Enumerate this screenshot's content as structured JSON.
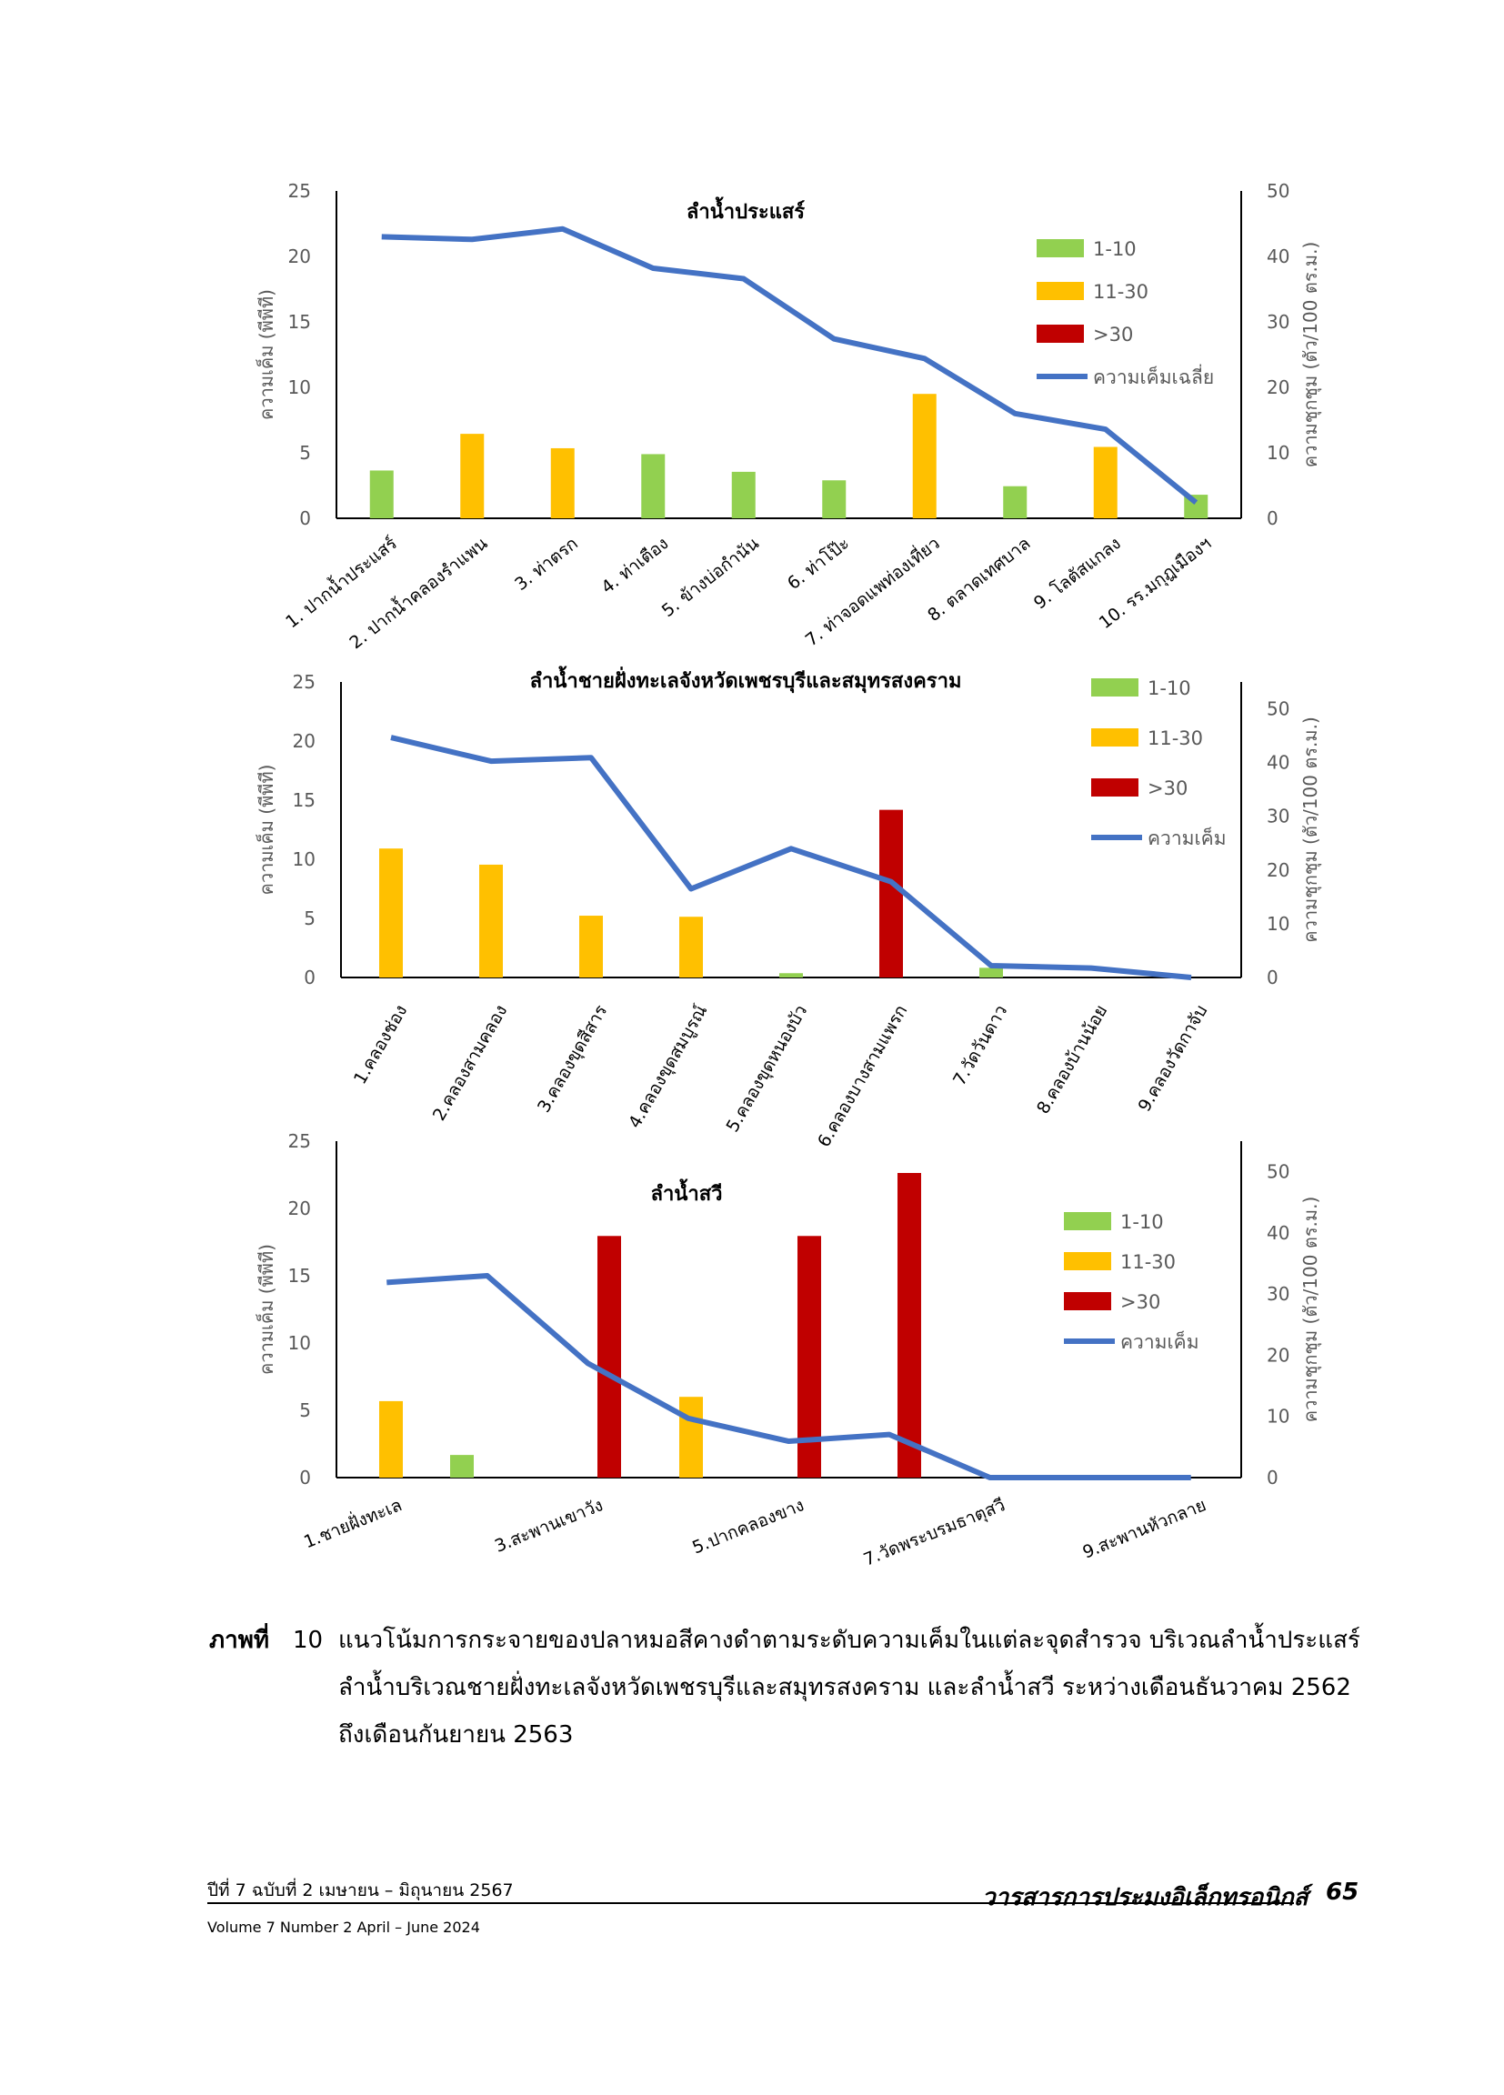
{
  "chart_data": [
    {
      "type": "bar",
      "title": "ลำน้ำประแสร์",
      "ylabel": "ความเค็ม (พีพีที)",
      "y2label": "ความชุกชุม (ตัว/100 ตร.ม.)",
      "ylim": [
        0,
        25
      ],
      "y2lim": [
        0,
        50
      ],
      "yticks": [
        "0",
        "5",
        "10",
        "15",
        "20",
        "25"
      ],
      "y2ticks": [
        "0",
        "10",
        "20",
        "30",
        "40",
        "50"
      ],
      "categories": [
        "1. ปากน้ำประแสร์",
        "2. ปากน้ำคลองรำแพน",
        "3. ท่าตรก",
        "4. ท่าเตือง",
        "5. ข้างบ่อกำนัน",
        "6. ท่าโป๊ะ",
        "7. ท่าจอดแพท่องเที่ยว",
        "8. ตลาดเทศบาล",
        "9. โลตัสแกลง",
        "10. รร.มกุฎเมืองฯ"
      ],
      "legend": [
        {
          "label": "1-10",
          "color": "#92d050"
        },
        {
          "label": "11-30",
          "color": "#ffc000"
        },
        {
          "label": ">30",
          "color": "#c00000"
        },
        {
          "label": "ความเค็มเฉลี่ย",
          "color": "#4472c4"
        }
      ],
      "bars": [
        {
          "value": 7.3,
          "class": "1-10"
        },
        {
          "value": 12.9,
          "class": "11-30"
        },
        {
          "value": 10.7,
          "class": "11-30"
        },
        {
          "value": 9.8,
          "class": "1-10"
        },
        {
          "value": 7.1,
          "class": "1-10"
        },
        {
          "value": 5.8,
          "class": "1-10"
        },
        {
          "value": 19.0,
          "class": "11-30"
        },
        {
          "value": 4.9,
          "class": "1-10"
        },
        {
          "value": 10.9,
          "class": "11-30"
        },
        {
          "value": 3.6,
          "class": "1-10"
        }
      ],
      "line_series": {
        "name": "ความเค็มเฉลี่ย",
        "values": [
          21.5,
          21.3,
          22.1,
          19.1,
          18.3,
          13.7,
          12.2,
          8.0,
          6.8,
          1.2
        ]
      }
    },
    {
      "type": "bar",
      "title": "ลำน้ำชายฝั่งทะเลจังหวัดเพชรบุรีและสมุทรสงคราม",
      "ylabel": "ความเค็ม (พีพีที)",
      "y2label": "ความชุกชุม (ตัว/100 ตร.ม.)",
      "ylim": [
        0,
        25
      ],
      "y2lim": [
        0,
        55
      ],
      "yticks": [
        "0",
        "5",
        "10",
        "15",
        "20",
        "25"
      ],
      "y2ticks": [
        "0",
        "10",
        "20",
        "30",
        "40",
        "50"
      ],
      "categories": [
        "1.คลองช่อง",
        "2.คลองสามคลอง",
        "3.คลองขุดสีสาร",
        "4.คลองขุดสมบูรณ์",
        "5.คลองขุดหนองบัว",
        "6.คลองบางสามแพรก",
        "7.วัดวันดาว",
        "8.คลองบ้านน้อย",
        "9.คลองวัดกาจับ"
      ],
      "legend": [
        {
          "label": "1-10",
          "color": "#92d050"
        },
        {
          "label": "11-30",
          "color": "#ffc000"
        },
        {
          "label": ">30",
          "color": "#c00000"
        },
        {
          "label": "ความเค็ม",
          "color": "#4472c4"
        }
      ],
      "bars": [
        {
          "value": 24,
          "class": "11-30"
        },
        {
          "value": 21,
          "class": "11-30"
        },
        {
          "value": 11.5,
          "class": "11-30"
        },
        {
          "value": 11.3,
          "class": "11-30"
        },
        {
          "value": 0.8,
          "class": "1-10"
        },
        {
          "value": 31.2,
          "class": ">30"
        },
        {
          "value": 1.8,
          "class": "1-10"
        },
        {
          "value": 0,
          "class": "1-10"
        },
        {
          "value": 0,
          "class": "1-10"
        }
      ],
      "line_series": {
        "name": "ความเค็ม",
        "values": [
          20.3,
          18.3,
          18.6,
          7.5,
          10.9,
          8.1,
          1.0,
          0.8,
          0
        ]
      }
    },
    {
      "type": "bar",
      "title": "ลำน้ำสวี",
      "ylabel": "ความเค็ม (พีพีที)",
      "y2label": "ความชุกชุม (ตัว/100 ตร.ม.)",
      "ylim": [
        0,
        25
      ],
      "y2lim": [
        0,
        55
      ],
      "yticks": [
        "0",
        "5",
        "10",
        "15",
        "20",
        "25"
      ],
      "y2ticks": [
        "0",
        "10",
        "20",
        "30",
        "40",
        "50"
      ],
      "categories": [
        "1.ชายฝั่งทะเล",
        "2",
        "3.สะพานเขาวัง",
        "4",
        "5.ปากคลองขาง",
        "6",
        "7.วัดพระบรมธาตุสวี",
        "8",
        "9.สะพานหัวกลาย"
      ],
      "category_labels_shown": [
        "1.ชายฝั่งทะเล",
        "",
        "3.สะพานเขาวัง",
        "",
        "5.ปากคลองขาง",
        "",
        "7.วัดพระบรมธาตุสวี",
        "",
        "9.สะพานหัวกลาย"
      ],
      "legend": [
        {
          "label": "1-10",
          "color": "#92d050"
        },
        {
          "label": "11-30",
          "color": "#ffc000"
        },
        {
          "label": ">30",
          "color": "#c00000"
        },
        {
          "label": "ความเค็ม",
          "color": "#4472c4"
        }
      ],
      "bar_slots": [
        {
          "slot": 0,
          "value": 12.5,
          "class": "11-30"
        },
        {
          "slot": 1,
          "value": 3.7,
          "class": "1-10"
        },
        {
          "slot": 2,
          "value": 39.5,
          "class": ">30"
        },
        {
          "slot": 3,
          "value": 13.2,
          "class": "11-30"
        },
        {
          "slot": 4,
          "value": 39.5,
          "class": ">30"
        },
        {
          "slot": 5,
          "value": 49.8,
          "class": ">30"
        }
      ],
      "line_series": {
        "name": "ความเค็ม",
        "values": [
          14.5,
          15.0,
          8.5,
          4.4,
          2.7,
          3.2,
          0,
          0,
          0
        ]
      }
    }
  ],
  "caption": {
    "label": "ภาพที่",
    "number": "10",
    "text": "แนวโน้มการกระจายของปลาหมอสีคางดำตามระดับความเค็มในแต่ละจุดสำรวจ บริเวณลำน้ำประแสร์ ลำน้ำบริเวณชายฝั่งทะเลจังหวัดเพชรบุรีและสมุทรสงคราม และลำน้ำสวี ระหว่างเดือนธันวาคม 2562 ถึงเดือนกันยายน 2563"
  },
  "footer": {
    "issue": "ปีที่ 7 ฉบับที่ 2 เมษายน – มิถุนายน 2567",
    "volume": "Volume 7 Number 2 April – June 2024",
    "journal": "วารสารการประมงอิเล็กทรอนิกส์",
    "page": "65"
  },
  "colors": {
    "green": "#92d050",
    "orange": "#ffc000",
    "red": "#c00000",
    "line": "#4472c4"
  }
}
